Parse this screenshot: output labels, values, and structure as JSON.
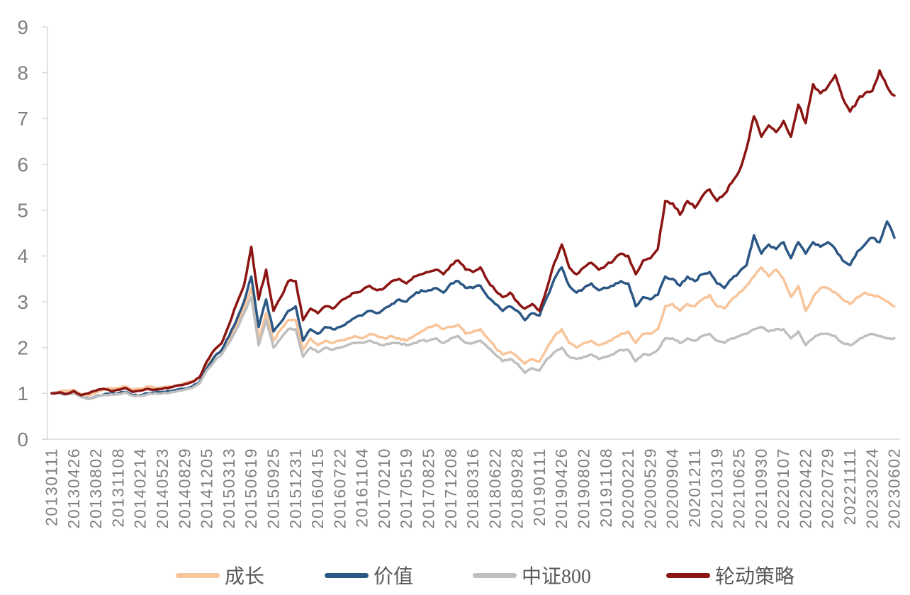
{
  "chart_data": {
    "type": "line",
    "title": "",
    "grid": false,
    "legend_position": "bottom",
    "y_axis": {
      "min": 0,
      "max": 9,
      "tick_step": 1,
      "ticks": [
        "0",
        "1",
        "2",
        "3",
        "4",
        "5",
        "6",
        "7",
        "8",
        "9"
      ]
    },
    "x_axis": {
      "tick_labels": [
        "20130111",
        "20130426",
        "20130802",
        "20131108",
        "20140214",
        "20140523",
        "20140829",
        "20141205",
        "20150313",
        "20150619",
        "20150925",
        "20151231",
        "20160415",
        "20160722",
        "20161104",
        "20170210",
        "20170519",
        "20170825",
        "20171208",
        "20180316",
        "20180622",
        "20180928",
        "20190111",
        "20190426",
        "20190802",
        "20191108",
        "20200221",
        "20200529",
        "20200904",
        "20201211",
        "20210319",
        "20210625",
        "20210930",
        "20220107",
        "20220422",
        "20220729",
        "20221111",
        "20230224",
        "20230602"
      ]
    },
    "colors": {
      "axis_line": "#d9d9d9",
      "tick_label": "#7f7f7f",
      "legend_text": "#595959"
    },
    "series": [
      {
        "name": "成长",
        "color": "#F8C49A",
        "values": [
          1.0,
          1.04,
          1.06,
          1.08,
          0.98,
          0.95,
          1.02,
          1.08,
          1.12,
          1.12,
          1.15,
          1.08,
          1.1,
          1.15,
          1.12,
          1.13,
          1.15,
          1.18,
          1.22,
          1.26,
          1.35,
          1.6,
          1.8,
          1.95,
          2.2,
          2.5,
          2.85,
          3.3,
          2.2,
          2.75,
          2.15,
          2.4,
          2.6,
          2.6,
          1.95,
          2.2,
          2.05,
          2.15,
          2.1,
          2.15,
          2.2,
          2.25,
          2.2,
          2.3,
          2.25,
          2.2,
          2.25,
          2.2,
          2.15,
          2.25,
          2.35,
          2.45,
          2.5,
          2.4,
          2.45,
          2.5,
          2.3,
          2.35,
          2.4,
          2.2,
          2.0,
          1.85,
          1.9,
          1.8,
          1.65,
          1.75,
          1.7,
          2.0,
          2.25,
          2.4,
          2.1,
          2.0,
          2.1,
          2.15,
          2.05,
          2.1,
          2.2,
          2.3,
          2.35,
          2.1,
          2.3,
          2.3,
          2.4,
          2.9,
          2.95,
          2.8,
          2.95,
          2.9,
          3.05,
          3.15,
          2.9,
          2.85,
          3.05,
          3.2,
          3.35,
          3.55,
          3.75,
          3.55,
          3.7,
          3.5,
          3.1,
          3.35,
          2.8,
          3.1,
          3.3,
          3.3,
          3.2,
          3.05,
          2.95,
          3.1,
          3.2,
          3.15,
          3.1,
          3.0,
          2.9
        ]
      },
      {
        "name": "价值",
        "color": "#2B5784",
        "values": [
          1.0,
          1.01,
          0.98,
          1.02,
          0.92,
          0.88,
          0.93,
          0.97,
          1.0,
          1.0,
          1.03,
          0.96,
          0.96,
          1.0,
          1.02,
          1.03,
          1.05,
          1.08,
          1.1,
          1.15,
          1.25,
          1.55,
          1.8,
          1.95,
          2.25,
          2.6,
          3.0,
          3.55,
          2.45,
          3.05,
          2.35,
          2.55,
          2.8,
          2.9,
          2.15,
          2.4,
          2.3,
          2.45,
          2.4,
          2.45,
          2.55,
          2.65,
          2.7,
          2.8,
          2.75,
          2.85,
          2.95,
          3.05,
          3.0,
          3.15,
          3.25,
          3.25,
          3.3,
          3.2,
          3.4,
          3.45,
          3.3,
          3.3,
          3.35,
          3.1,
          2.95,
          2.8,
          2.9,
          2.8,
          2.6,
          2.75,
          2.7,
          3.1,
          3.5,
          3.75,
          3.35,
          3.2,
          3.3,
          3.4,
          3.25,
          3.3,
          3.35,
          3.45,
          3.4,
          2.9,
          3.1,
          3.05,
          3.15,
          3.55,
          3.5,
          3.35,
          3.55,
          3.45,
          3.6,
          3.65,
          3.4,
          3.3,
          3.5,
          3.65,
          3.8,
          4.45,
          4.05,
          4.25,
          4.15,
          4.3,
          3.95,
          4.3,
          4.05,
          4.3,
          4.2,
          4.3,
          4.15,
          3.9,
          3.8,
          4.1,
          4.25,
          4.4,
          4.3,
          4.75,
          4.4
        ]
      },
      {
        "name": "中证800",
        "color": "#BFBFBF",
        "values": [
          1.0,
          1.01,
          0.98,
          1.0,
          0.92,
          0.88,
          0.92,
          0.96,
          0.98,
          0.98,
          1.02,
          0.95,
          0.94,
          0.98,
          1.0,
          1.0,
          1.02,
          1.05,
          1.08,
          1.12,
          1.22,
          1.5,
          1.7,
          1.85,
          2.1,
          2.4,
          2.75,
          3.1,
          2.05,
          2.6,
          2.0,
          2.2,
          2.4,
          2.4,
          1.8,
          2.0,
          1.9,
          2.0,
          1.95,
          2.0,
          2.05,
          2.1,
          2.1,
          2.15,
          2.1,
          2.05,
          2.1,
          2.1,
          2.05,
          2.1,
          2.15,
          2.15,
          2.2,
          2.1,
          2.2,
          2.25,
          2.1,
          2.1,
          2.15,
          2.0,
          1.85,
          1.7,
          1.75,
          1.65,
          1.45,
          1.55,
          1.5,
          1.75,
          1.9,
          2.0,
          1.8,
          1.75,
          1.8,
          1.85,
          1.75,
          1.8,
          1.85,
          1.95,
          1.95,
          1.7,
          1.85,
          1.85,
          1.95,
          2.2,
          2.2,
          2.1,
          2.2,
          2.15,
          2.25,
          2.3,
          2.15,
          2.1,
          2.2,
          2.25,
          2.3,
          2.4,
          2.45,
          2.35,
          2.4,
          2.4,
          2.2,
          2.35,
          2.05,
          2.2,
          2.3,
          2.3,
          2.25,
          2.1,
          2.05,
          2.15,
          2.25,
          2.3,
          2.25,
          2.2,
          2.2
        ]
      },
      {
        "name": "轮动策略",
        "color": "#8B1512",
        "values": [
          1.0,
          1.02,
          0.99,
          1.05,
          0.96,
          1.0,
          1.06,
          1.1,
          1.05,
          1.08,
          1.12,
          1.03,
          1.06,
          1.1,
          1.08,
          1.1,
          1.13,
          1.17,
          1.2,
          1.25,
          1.35,
          1.7,
          1.95,
          2.1,
          2.5,
          2.95,
          3.35,
          4.2,
          3.05,
          3.7,
          2.8,
          3.1,
          3.45,
          3.45,
          2.6,
          2.85,
          2.75,
          2.9,
          2.85,
          3.0,
          3.1,
          3.2,
          3.25,
          3.35,
          3.25,
          3.3,
          3.45,
          3.5,
          3.4,
          3.55,
          3.6,
          3.65,
          3.7,
          3.6,
          3.8,
          3.9,
          3.7,
          3.65,
          3.75,
          3.45,
          3.25,
          3.1,
          3.2,
          3.0,
          2.85,
          2.95,
          2.8,
          3.3,
          3.85,
          4.25,
          3.75,
          3.6,
          3.75,
          3.85,
          3.7,
          3.8,
          3.9,
          4.05,
          4.0,
          3.6,
          3.9,
          3.95,
          4.15,
          5.2,
          5.15,
          4.9,
          5.2,
          5.05,
          5.3,
          5.45,
          5.2,
          5.35,
          5.6,
          5.85,
          6.35,
          7.05,
          6.6,
          6.85,
          6.7,
          6.95,
          6.6,
          7.3,
          6.9,
          7.75,
          7.55,
          7.7,
          7.95,
          7.45,
          7.15,
          7.4,
          7.55,
          7.6,
          8.05,
          7.7,
          7.5
        ]
      }
    ]
  }
}
